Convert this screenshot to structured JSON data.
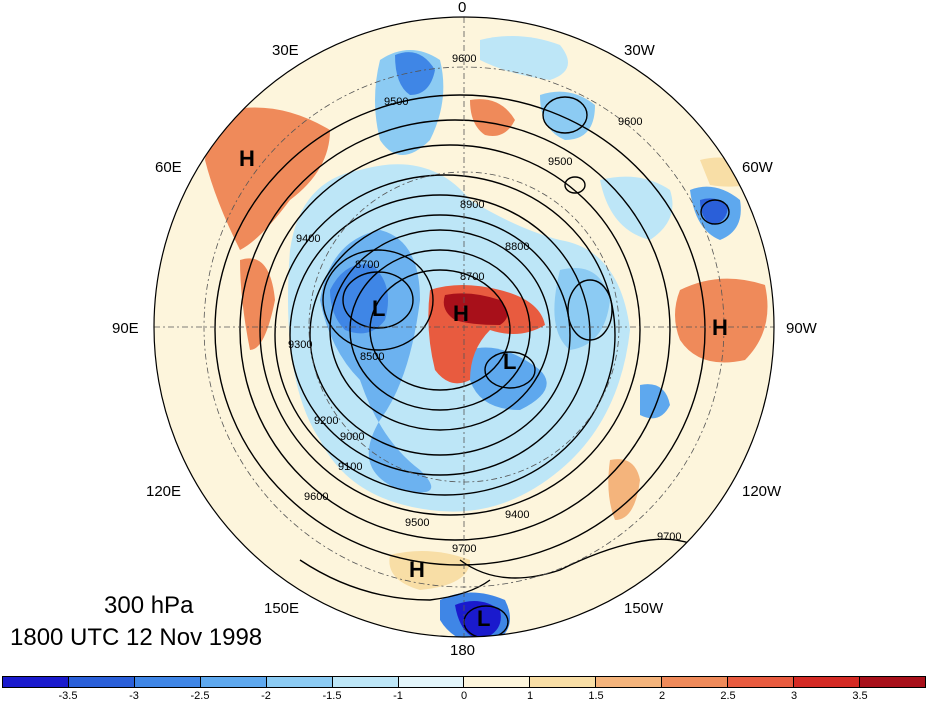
{
  "map": {
    "level": "300 hPa",
    "valid_time": "1800 UTC 12 Nov 1998",
    "longitude_labels": [
      "0",
      "30W",
      "60W",
      "90W",
      "120W",
      "150W",
      "180",
      "150E",
      "120E",
      "90E",
      "60E",
      "30E"
    ],
    "centers": [
      {
        "type": "H",
        "label": "H"
      },
      {
        "type": "H",
        "label": "H"
      },
      {
        "type": "H",
        "label": "H"
      },
      {
        "type": "H",
        "label": "H"
      },
      {
        "type": "L",
        "label": "L"
      },
      {
        "type": "L",
        "label": "L"
      },
      {
        "type": "L",
        "label": "L"
      }
    ],
    "contour_labels": [
      "9600",
      "9500",
      "9400",
      "9300",
      "9200",
      "9100",
      "9000",
      "8900",
      "8800",
      "8700",
      "8600",
      "8500",
      "9700"
    ],
    "colorbar": {
      "ticks": [
        "-3.5",
        "-3",
        "-2.5",
        "-2",
        "-1.5",
        "-1",
        "0",
        "1",
        "1.5",
        "2",
        "2.5",
        "3",
        "3.5"
      ],
      "colors": [
        "#1a1acd",
        "#2a5fd9",
        "#3f86e6",
        "#5ea8ee",
        "#8ccbf3",
        "#bde6f7",
        "#e3f5fb",
        "#fdf5dc",
        "#f8dea6",
        "#f4b47c",
        "#ef8a5a",
        "#e85b3f",
        "#d42a24",
        "#a8101a"
      ]
    }
  }
}
